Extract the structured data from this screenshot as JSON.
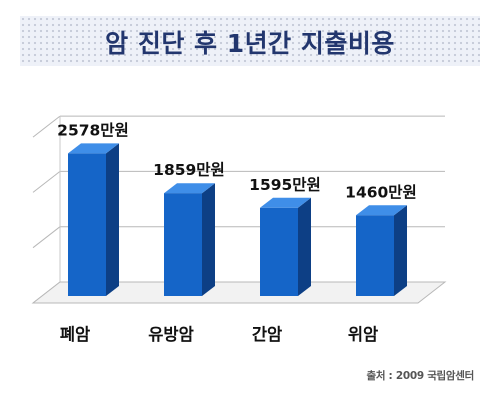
{
  "title": "암 진단 후 1년간 지출비용",
  "source": "출처 : 2009 국립암센터",
  "colors": {
    "bar_front": "#1565c8",
    "bar_side": "#0d3f85",
    "bar_top": "#3f8ee8",
    "title_text": "#22366e"
  },
  "chart_data": {
    "type": "bar",
    "title": "암 진단 후 1년간 지출비용",
    "categories": [
      "폐암",
      "유방암",
      "간암",
      "위암"
    ],
    "values": [
      2578,
      1859,
      1595,
      1460
    ],
    "value_labels": [
      "2578만원",
      "1859만원",
      "1595만원",
      "1460만원"
    ],
    "unit": "만원",
    "ylim": [
      0,
      3000
    ],
    "grid": true,
    "legend": "none"
  }
}
